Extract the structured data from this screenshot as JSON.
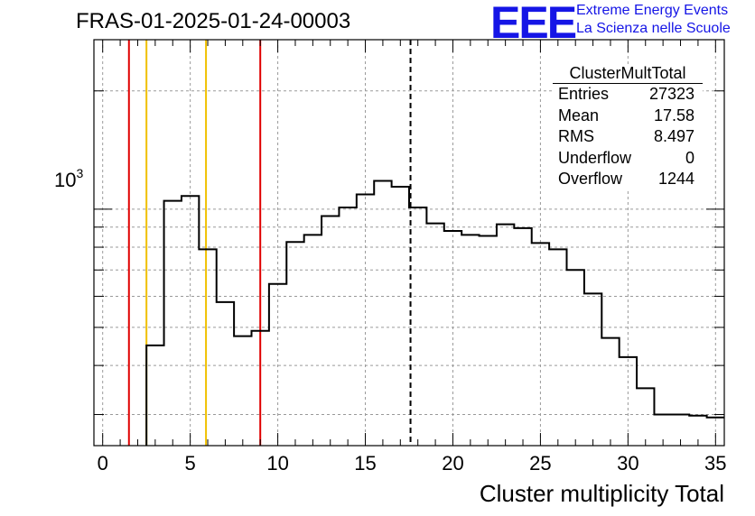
{
  "header": {
    "title": "FRAS-01-2025-01-24-00003",
    "logo_text": "EEE",
    "logo_line1": "Extreme Energy Events",
    "logo_line2": "La Scienza nelle Scuole"
  },
  "stats": {
    "name": "ClusterMultTotal",
    "rows": [
      {
        "label": "Entries",
        "value": "27323"
      },
      {
        "label": "Mean",
        "value": "17.58"
      },
      {
        "label": "RMS",
        "value": "8.497"
      },
      {
        "label": "Underflow",
        "value": "0"
      },
      {
        "label": "Overflow",
        "value": "1244"
      }
    ]
  },
  "chart_data": {
    "type": "histogram",
    "xlabel": "Cluster multiplicity Total",
    "ylabel": "",
    "xlim": [
      -0.5,
      35.5
    ],
    "ylim": [
      250,
      2700
    ],
    "log_y": true,
    "grid": true,
    "y_tick_label": "10^3",
    "x_ticks": [
      0,
      5,
      10,
      15,
      20,
      25,
      30,
      35
    ],
    "bin_width": 1,
    "bins": [
      {
        "x": 3,
        "value": 450
      },
      {
        "x": 4,
        "value": 1050
      },
      {
        "x": 5,
        "value": 1080
      },
      {
        "x": 6,
        "value": 790
      },
      {
        "x": 7,
        "value": 580
      },
      {
        "x": 8,
        "value": 475
      },
      {
        "x": 9,
        "value": 490
      },
      {
        "x": 10,
        "value": 645
      },
      {
        "x": 11,
        "value": 825
      },
      {
        "x": 12,
        "value": 860
      },
      {
        "x": 13,
        "value": 960
      },
      {
        "x": 14,
        "value": 1010
      },
      {
        "x": 15,
        "value": 1090
      },
      {
        "x": 16,
        "value": 1180
      },
      {
        "x": 17,
        "value": 1140
      },
      {
        "x": 18,
        "value": 1010
      },
      {
        "x": 19,
        "value": 920
      },
      {
        "x": 20,
        "value": 880
      },
      {
        "x": 21,
        "value": 860
      },
      {
        "x": 22,
        "value": 855
      },
      {
        "x": 23,
        "value": 915
      },
      {
        "x": 24,
        "value": 895
      },
      {
        "x": 25,
        "value": 820
      },
      {
        "x": 26,
        "value": 790
      },
      {
        "x": 27,
        "value": 700
      },
      {
        "x": 28,
        "value": 610
      },
      {
        "x": 29,
        "value": 470
      },
      {
        "x": 30,
        "value": 420
      },
      {
        "x": 31,
        "value": 350
      },
      {
        "x": 32,
        "value": 300
      },
      {
        "x": 33,
        "value": 300
      },
      {
        "x": 34,
        "value": 298
      },
      {
        "x": 35,
        "value": 295
      }
    ],
    "vertical_lines": [
      {
        "x": 1.5,
        "color": "#e00000",
        "style": "solid"
      },
      {
        "x": 2.5,
        "color": "#f0c000",
        "style": "solid"
      },
      {
        "x": 5.9,
        "color": "#f0c000",
        "style": "solid"
      },
      {
        "x": 9.0,
        "color": "#e00000",
        "style": "solid"
      },
      {
        "x": 17.58,
        "color": "#000000",
        "style": "dashed"
      }
    ]
  }
}
